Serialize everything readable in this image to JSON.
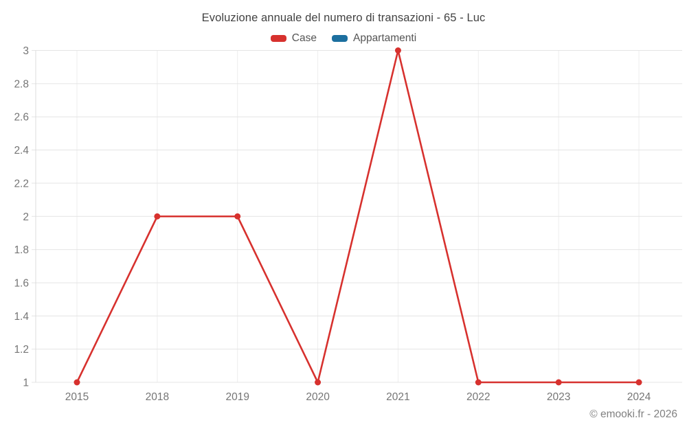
{
  "chart_data": {
    "type": "line",
    "title": "Evoluzione annuale del numero di transazioni - 65 - Luc",
    "categories": [
      "2015",
      "2018",
      "2019",
      "2020",
      "2021",
      "2022",
      "2023",
      "2024"
    ],
    "series": [
      {
        "name": "Case",
        "color": "#d7312e",
        "values": [
          1,
          2,
          2,
          1,
          3,
          1,
          1,
          1
        ]
      },
      {
        "name": "Appartamenti",
        "color": "#1c6f9f",
        "values": []
      }
    ],
    "xlabel": "",
    "ylabel": "",
    "ylim": [
      1,
      3
    ],
    "ytick_step": 0.2,
    "grid": true,
    "legend_position": "top"
  },
  "footer": {
    "text": "© emooki.fr - 2026"
  },
  "colors": {
    "background": "#ffffff",
    "title_text": "#424242",
    "legend_text": "#555555",
    "tick_text": "#757575",
    "gridline_h": "#e4e4e4",
    "gridline_v": "#ededed",
    "axis_line": "#dcdcdc"
  }
}
